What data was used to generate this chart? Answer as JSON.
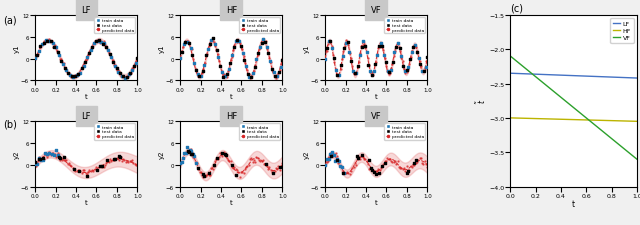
{
  "fig_width": 6.4,
  "fig_height": 2.26,
  "dpi": 100,
  "background_color": "#f0f0f0",
  "axes_facecolor": "#ffffff",
  "panel_c": {
    "title": "c",
    "xlabel": "t",
    "ylabel": "$\\tilde{t}$",
    "xlim": [
      0.0,
      1.0
    ],
    "ylim": [
      -4.0,
      -1.5
    ],
    "yticks": [
      -4.0,
      -3.5,
      -3.0,
      -2.5,
      -2.0,
      -1.5
    ],
    "xticks": [
      0.0,
      0.2,
      0.4,
      0.6,
      0.8,
      1.0
    ],
    "LF_line": {
      "x": [
        0.0,
        1.0
      ],
      "y": [
        -2.35,
        -2.42
      ],
      "color": "#4472c4",
      "label": "LF"
    },
    "HF_line": {
      "x": [
        0.0,
        1.0
      ],
      "y": [
        -3.0,
        -3.05
      ],
      "color": "#bcb400",
      "label": "HF"
    },
    "VF_line": {
      "x": [
        0.0,
        1.0
      ],
      "y": [
        -2.1,
        -3.6
      ],
      "color": "#2ca02c",
      "label": "VF"
    }
  },
  "subplot_titles_row1": [
    "LF",
    "HF",
    "VF"
  ],
  "subplot_titles_row2": [
    "LF",
    "HF",
    "VF"
  ],
  "panel_a_label": "(a)",
  "panel_b_label": "(b)",
  "row1_ylim": [
    -6,
    12
  ],
  "row2_ylim": [
    -6,
    12
  ],
  "row1_yticks": [
    -6,
    0,
    6,
    12
  ],
  "row2_yticks": [
    -6,
    0,
    6,
    12
  ],
  "xticks_subplots": [
    0.0,
    0.2,
    0.4,
    0.6,
    0.8,
    1.0
  ],
  "xlabel_subplots": "t",
  "row1_ylabels": [
    "y1",
    "y1",
    "y1"
  ],
  "row2_ylabels": [
    "y2",
    "y2",
    "y2"
  ],
  "train_color": "#1f77b4",
  "test_color": "#000000",
  "pred_color": "#d62728",
  "title_bar_color": "#c8c8c8"
}
